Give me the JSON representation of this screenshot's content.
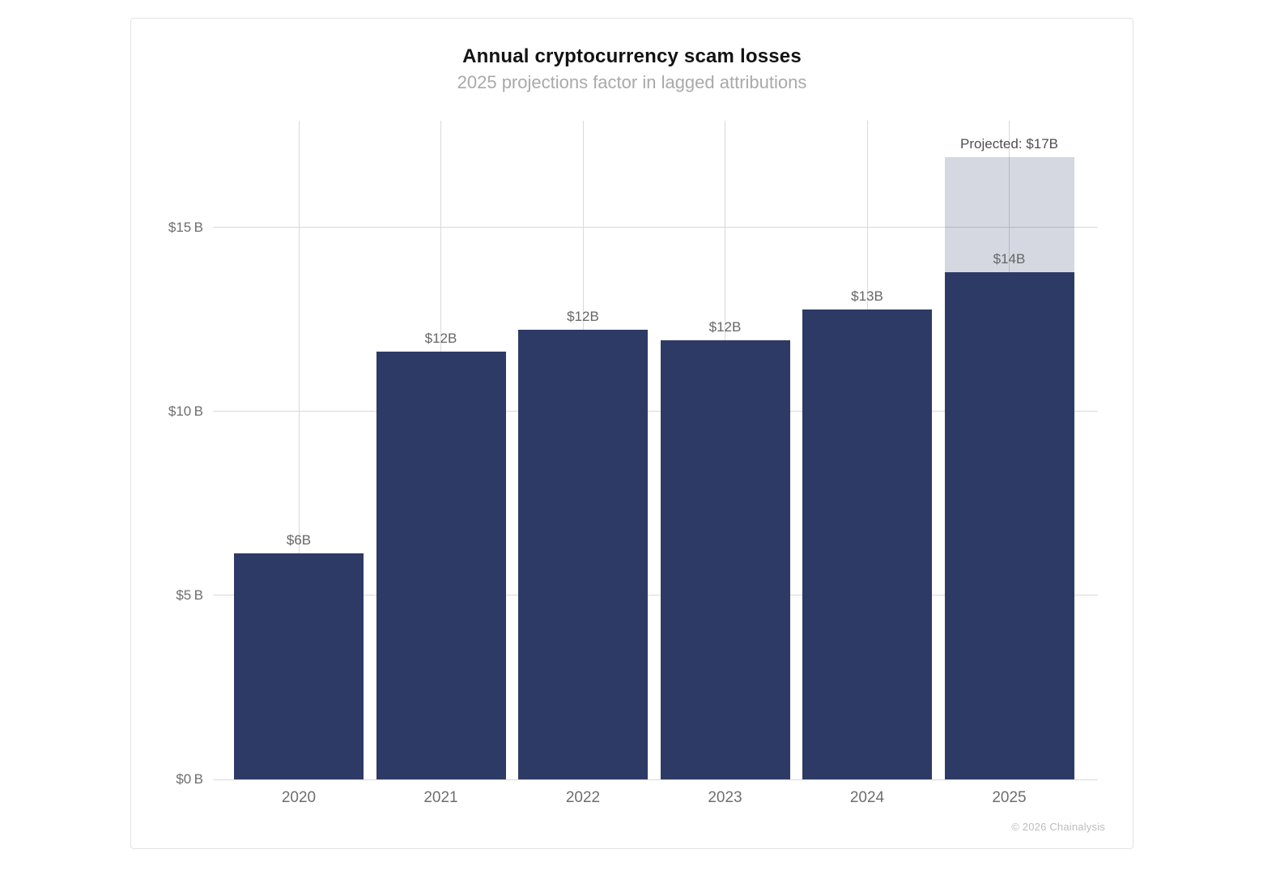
{
  "page": {
    "footer": "© 2026 Chainalysis"
  },
  "chart_data": {
    "type": "bar",
    "title": "Annual cryptocurrency scam losses",
    "subtitle": "2025 projections factor in lagged attributions",
    "categories": [
      "2020",
      "2021",
      "2022",
      "2023",
      "2024",
      "2025"
    ],
    "values": [
      6.15,
      11.63,
      12.22,
      11.93,
      12.77,
      13.79
    ],
    "value_labels": [
      "$6B",
      "$12B",
      "$12B",
      "$12B",
      "$13B",
      "$14B"
    ],
    "projected": {
      "category": "2025",
      "total_value": 16.92,
      "label": "Projected: $17B"
    },
    "y_ticks": [
      {
        "value": 0,
        "label": "$0 B"
      },
      {
        "value": 5,
        "label": "$5 B"
      },
      {
        "value": 10,
        "label": "$10 B"
      },
      {
        "value": 15,
        "label": "$15 B"
      }
    ],
    "ylim": [
      0,
      17.9
    ],
    "xlabel": "",
    "ylabel": "",
    "legend": "none",
    "grid": {
      "horizontal": true,
      "vertical": true
    },
    "colors": {
      "bar": "#2e3a66",
      "projected_fill": "rgba(46,58,102,0.2)",
      "gridline": "#d9d9d9",
      "axis_label": "#6e6e6e",
      "value_label": "#666666",
      "projected_label": "#4f4f4f",
      "title": "#131313",
      "subtitle": "#a9a9a9",
      "footer": "#bdbdbd"
    }
  }
}
